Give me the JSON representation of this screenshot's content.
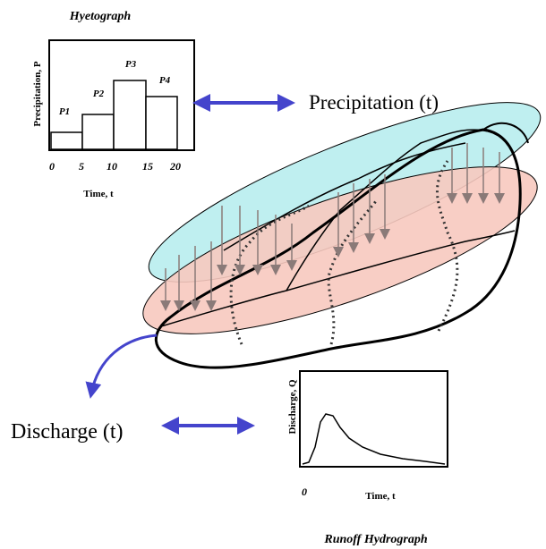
{
  "hyetograph": {
    "title": "Hyetograph",
    "y_label": "Precipitation, P",
    "x_label": "Time, t",
    "bar_labels": [
      "P1",
      "P2",
      "P3",
      "P4"
    ],
    "x_ticks": [
      "0",
      "5",
      "10",
      "15",
      "20"
    ]
  },
  "precipitation_label": "Precipitation (t)",
  "discharge_label": "Discharge (t)",
  "hydrograph": {
    "title": "Runoff Hydrograph",
    "y_label": "Discharge, Q",
    "x_label": "Time, t",
    "origin": "0"
  }
}
